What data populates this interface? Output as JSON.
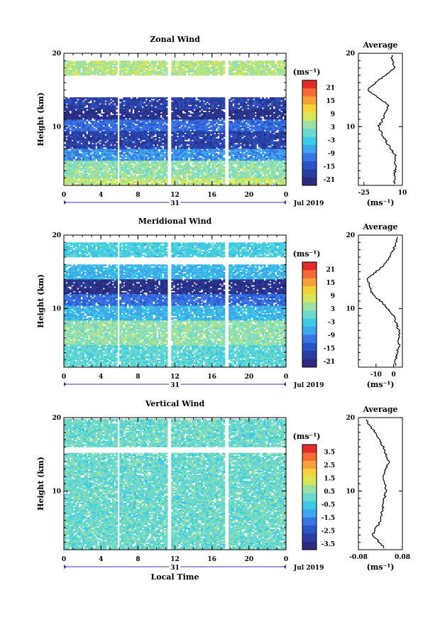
{
  "chart_data": [
    {
      "type": "heatmap",
      "title": "Zonal Wind",
      "ylabel": "Height (km)",
      "xlim": [
        0,
        24
      ],
      "ylim": [
        2,
        20
      ],
      "xticks": [
        "0",
        "4",
        "8",
        "12",
        "16",
        "20",
        "0"
      ],
      "yticks": [
        "20",
        "10"
      ],
      "day_label": "31",
      "month_label": "Jul 2019",
      "colorbar": {
        "unit": "(ms⁻¹)",
        "ticks": [
          "21",
          "15",
          "9",
          "3",
          "-3",
          "-9",
          "-15",
          "-21"
        ],
        "range": [
          -24,
          24
        ]
      },
      "gaps_hours": [
        [
          5.8,
          6.1
        ],
        [
          11.2,
          11.6
        ],
        [
          17.5,
          17.9
        ]
      ],
      "profile_levels_km": [
        3,
        6,
        8,
        10,
        11.2,
        13,
        15,
        16.5,
        18,
        19.5
      ],
      "profile_values": [
        3,
        4,
        -5,
        -12,
        -7,
        -3,
        -22,
        -10,
        3,
        0
      ],
      "layers": [
        {
          "z0": 2,
          "z1": 3,
          "value": 6
        },
        {
          "z0": 3,
          "z1": 5.5,
          "value": 3
        },
        {
          "z0": 5.5,
          "z1": 7,
          "value": -9
        },
        {
          "z0": 7,
          "z1": 9.5,
          "value": -18
        },
        {
          "z0": 9.5,
          "z1": 11,
          "value": -12
        },
        {
          "z0": 11,
          "z1": 12.5,
          "value": -21
        },
        {
          "z0": 12.5,
          "z1": 14,
          "value": -18
        },
        {
          "z0": 17,
          "z1": 19,
          "value": 5
        }
      ],
      "average": {
        "title": "Average",
        "xlabel": "(ms⁻¹)",
        "xticks": [
          "-25",
          "10"
        ],
        "yticks": [
          "20",
          "10"
        ],
        "xlim": [
          -30,
          10
        ]
      }
    },
    {
      "type": "heatmap",
      "title": "Meridional Wind",
      "ylabel": "Height (km)",
      "xlim": [
        0,
        24
      ],
      "ylim": [
        2,
        20
      ],
      "xticks": [
        "0",
        "4",
        "8",
        "12",
        "16",
        "20",
        "0"
      ],
      "yticks": [
        "20",
        "10"
      ],
      "day_label": "31",
      "month_label": "Jul 2019",
      "colorbar": {
        "unit": "(ms⁻¹)",
        "ticks": [
          "21",
          "15",
          "9",
          "3",
          "-3",
          "-9",
          "-15",
          "-21"
        ],
        "range": [
          -24,
          24
        ]
      },
      "gaps_hours": [
        [
          5.8,
          6.1
        ],
        [
          11.2,
          11.6
        ],
        [
          17.5,
          17.9
        ]
      ],
      "profile_levels_km": [
        3,
        5,
        7,
        9,
        10.5,
        12,
        14,
        16,
        18,
        19.5
      ],
      "profile_values": [
        1,
        3,
        3,
        0,
        -5,
        -12,
        -15,
        -5,
        0,
        2
      ],
      "layers": [
        {
          "z0": 2,
          "z1": 5,
          "value": -1
        },
        {
          "z0": 5,
          "z1": 8.5,
          "value": 3
        },
        {
          "z0": 8.5,
          "z1": 10.5,
          "value": -6
        },
        {
          "z0": 10.5,
          "z1": 12,
          "value": -12
        },
        {
          "z0": 12,
          "z1": 14,
          "value": -21
        },
        {
          "z0": 14,
          "z1": 16,
          "value": -6
        },
        {
          "z0": 17,
          "z1": 19,
          "value": -3
        }
      ],
      "average": {
        "title": "Average",
        "xlabel": "(ms⁻¹)",
        "xticks": [
          "-10",
          "0"
        ],
        "yticks": [
          "20",
          "10"
        ],
        "xlim": [
          -20,
          5
        ]
      }
    },
    {
      "type": "heatmap",
      "title": "Vertical Wind",
      "ylabel": "Height (km)",
      "xlabel": "Local Time",
      "xlim": [
        0,
        24
      ],
      "ylim": [
        2,
        20
      ],
      "xticks": [
        "0",
        "4",
        "8",
        "12",
        "16",
        "20",
        "0"
      ],
      "yticks": [
        "20",
        "10"
      ],
      "day_label": "31",
      "month_label": "Jul 2019",
      "colorbar": {
        "unit": "(ms⁻¹)",
        "ticks": [
          "3.5",
          "2.5",
          "1.5",
          "0.5",
          "-0.5",
          "-1.5",
          "-2.5",
          "-3.5"
        ],
        "range": [
          -4,
          4
        ]
      },
      "gaps_hours": [
        [
          5.8,
          6.1
        ],
        [
          11.2,
          11.6
        ],
        [
          17.5,
          17.9
        ]
      ],
      "profile_levels_km": [
        2.5,
        4,
        6,
        8,
        10,
        12,
        14,
        16,
        18,
        19.5
      ],
      "profile_values": [
        0.01,
        -0.03,
        0,
        0.01,
        0.02,
        0.01,
        0.03,
        0.01,
        -0.02,
        -0.05
      ],
      "layers": [
        {
          "z0": 2,
          "z1": 15.2,
          "value": 0
        },
        {
          "z0": 16,
          "z1": 19.8,
          "value": 0
        }
      ],
      "average": {
        "title": "Average",
        "xlabel": "(ms⁻¹)",
        "xticks": [
          "-0.08",
          "0.08"
        ],
        "yticks": [
          "20",
          "10"
        ],
        "xlim": [
          -0.08,
          0.08
        ]
      }
    }
  ],
  "colors": [
    "#2b2c7e",
    "#2a3ea2",
    "#2b56c8",
    "#3a75e6",
    "#3fa6ea",
    "#3ccbe4",
    "#6dd8cc",
    "#9de0a6",
    "#d4e85a",
    "#f3d43a",
    "#f6a23a",
    "#f36a34",
    "#e32b2b"
  ]
}
